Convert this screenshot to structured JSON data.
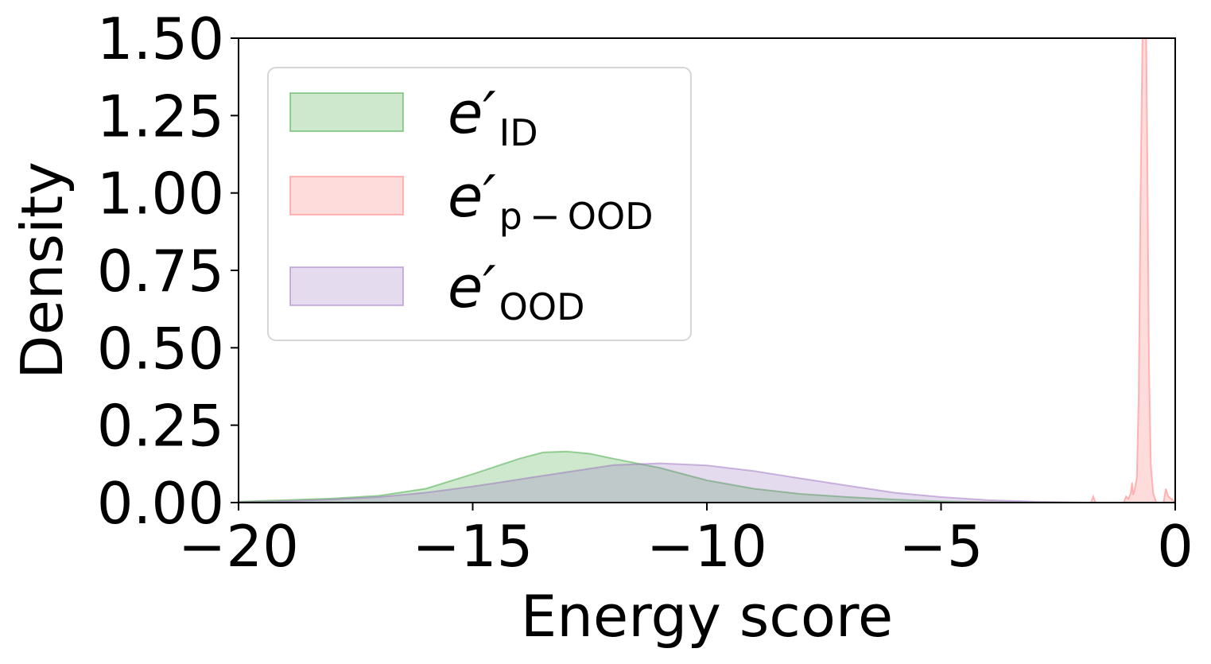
{
  "chart_data": {
    "type": "area",
    "title": "",
    "xlabel": "Energy score",
    "ylabel": "Density",
    "xlim": [
      -20,
      0
    ],
    "ylim": [
      0,
      1.5
    ],
    "x_ticks": [
      -20,
      -15,
      -10,
      -5,
      0
    ],
    "x_tick_labels": [
      "−20",
      "−15",
      "−10",
      "−5",
      "0"
    ],
    "y_ticks": [
      0,
      0.25,
      0.5,
      0.75,
      1.0,
      1.25,
      1.5
    ],
    "y_tick_labels": [
      "0.00",
      "0.25",
      "0.50",
      "0.75",
      "1.00",
      "1.25",
      "1.50"
    ],
    "grid": false,
    "legend_position": "upper-left",
    "series": [
      {
        "name_base": "e′",
        "name_sub": "ID",
        "color": "#2ca02c",
        "points": [
          [
            -20,
            0.003
          ],
          [
            -19,
            0.008
          ],
          [
            -18,
            0.013
          ],
          [
            -17,
            0.022
          ],
          [
            -16,
            0.045
          ],
          [
            -15,
            0.092
          ],
          [
            -14,
            0.142
          ],
          [
            -13.5,
            0.162
          ],
          [
            -13,
            0.165
          ],
          [
            -12.5,
            0.158
          ],
          [
            -12,
            0.142
          ],
          [
            -11,
            0.112
          ],
          [
            -10,
            0.072
          ],
          [
            -9,
            0.045
          ],
          [
            -8,
            0.028
          ],
          [
            -7,
            0.018
          ],
          [
            -6,
            0.01
          ],
          [
            -5,
            0.004
          ],
          [
            -4,
            0.002
          ],
          [
            -3,
            0.0
          ]
        ]
      },
      {
        "name_base": "e′",
        "name_sub": "p − OOD",
        "color": "#ff6b6b",
        "points": [
          [
            -1.8,
            0.0
          ],
          [
            -1.75,
            0.02
          ],
          [
            -1.7,
            0.0
          ],
          [
            -1.1,
            0.0
          ],
          [
            -1.05,
            0.02
          ],
          [
            -1.0,
            0.012
          ],
          [
            -0.95,
            0.03
          ],
          [
            -0.92,
            0.065
          ],
          [
            -0.9,
            0.025
          ],
          [
            -0.87,
            0.04
          ],
          [
            -0.82,
            0.08
          ],
          [
            -0.78,
            0.35
          ],
          [
            -0.74,
            1.0
          ],
          [
            -0.7,
            1.5
          ],
          [
            -0.62,
            1.5
          ],
          [
            -0.6,
            1.2
          ],
          [
            -0.56,
            0.45
          ],
          [
            -0.52,
            0.12
          ],
          [
            -0.47,
            0.03
          ],
          [
            -0.4,
            0.0
          ],
          [
            -0.25,
            0.0
          ],
          [
            -0.2,
            0.045
          ],
          [
            -0.15,
            0.02
          ],
          [
            -0.05,
            0.008
          ],
          [
            0.0,
            0.0
          ]
        ]
      },
      {
        "name_base": "e′",
        "name_sub": "OOD",
        "color": "#9467bd",
        "points": [
          [
            -20,
            0.002
          ],
          [
            -19,
            0.005
          ],
          [
            -18,
            0.01
          ],
          [
            -17,
            0.018
          ],
          [
            -16,
            0.032
          ],
          [
            -15,
            0.052
          ],
          [
            -14,
            0.075
          ],
          [
            -13,
            0.098
          ],
          [
            -12,
            0.121
          ],
          [
            -11,
            0.127
          ],
          [
            -10,
            0.12
          ],
          [
            -9,
            0.102
          ],
          [
            -8,
            0.078
          ],
          [
            -7,
            0.055
          ],
          [
            -6,
            0.032
          ],
          [
            -5,
            0.018
          ],
          [
            -4,
            0.008
          ],
          [
            -3,
            0.003
          ],
          [
            -2,
            0.0
          ]
        ]
      }
    ]
  }
}
